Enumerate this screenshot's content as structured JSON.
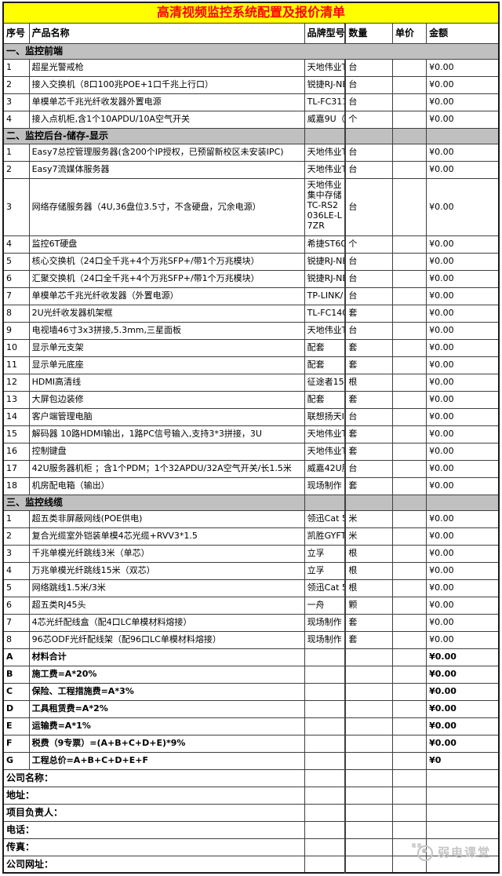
{
  "title": "高清视频监控系统配置及报价清单",
  "columns": [
    "序号",
    "产品名称",
    "品牌型号",
    "数量",
    "单价",
    "金额"
  ],
  "sections": [
    {
      "heading": "一、监控前端",
      "full_merge": true,
      "rows": [
        {
          "no": "1",
          "name": "超星光警戒枪",
          "brand": "天地伟业T",
          "qty": "台",
          "price": "",
          "amount": "¥0.00"
        },
        {
          "no": "2",
          "name": "接入交换机（8口100兆POE+1口千兆上行口）",
          "brand": "锐捷RJ-NE",
          "qty": "台",
          "price": "",
          "amount": "¥0.00"
        },
        {
          "no": "3",
          "name": "单模单芯千兆光纤收发器外置电源",
          "brand": "TL-FC3111",
          "qty": "台",
          "price": "",
          "amount": "¥0.00"
        },
        {
          "no": "4",
          "name": "接入点机柜,含1个10APDU/10A空气开关",
          "brand": "威嘉9U（5",
          "qty": "个",
          "price": "",
          "amount": "¥0.00"
        }
      ]
    },
    {
      "heading": "二、监控后台-储存-显示",
      "full_merge": false,
      "rows": [
        {
          "no": "1",
          "name": "Easy7总控管理服务器(含200个IP授权，已预留新校区未安装IPC)",
          "brand": "天地伟业T",
          "qty": "台",
          "price": "",
          "amount": "¥0.00"
        },
        {
          "no": "2",
          "name": "Easy7流媒体服务器",
          "brand": "天地伟业T",
          "qty": "台",
          "price": "",
          "amount": "¥0.00"
        },
        {
          "no": "3",
          "name": "网络存储服务器（4U,36盘位3.5寸，不含硬盘，冗余电源）",
          "brand": "天地伟业集中存储TC-RS2036LE-L7ZR",
          "qty": "台",
          "price": "",
          "amount": "¥0.00",
          "tall": true
        },
        {
          "no": "4",
          "name": "监控6T硬盘",
          "brand": "希捷ST600",
          "qty": "个",
          "price": "",
          "amount": "¥0.00"
        },
        {
          "no": "5",
          "name": "核心交换机（24口全千兆+4个万兆SFP+/带1个万兆模块）",
          "brand": "锐捷RJ-NE",
          "qty": "台",
          "price": "",
          "amount": "¥0.00"
        },
        {
          "no": "6",
          "name": "汇聚交换机（24口全千兆+4个万兆SFP+/带1个万兆模块）",
          "brand": "锐捷RJ-NE",
          "qty": "台",
          "price": "",
          "amount": "¥0.00"
        },
        {
          "no": "7",
          "name": "单模单芯千兆光纤收发器（外置电源）",
          "brand": "TP-LINK/",
          "qty": "台",
          "price": "",
          "amount": "¥0.00"
        },
        {
          "no": "8",
          "name": "2U光纤收发器机架框",
          "brand": "TL-FC140",
          "qty": "套",
          "price": "",
          "amount": "¥0.00"
        },
        {
          "no": "9",
          "name": "电视墙46寸3x3拼接,5.3mm,三星面板",
          "brand": "天地伟业T",
          "qty": "台",
          "price": "",
          "amount": "¥0.00"
        },
        {
          "no": "10",
          "name": "显示单元支架",
          "brand": "配套",
          "qty": "套",
          "price": "",
          "amount": "¥0.00"
        },
        {
          "no": "11",
          "name": "显示单元底座",
          "brand": "配套",
          "qty": "套",
          "price": "",
          "amount": "¥0.00"
        },
        {
          "no": "12",
          "name": "HDMI高清线",
          "brand": "征途者15米",
          "qty": "根",
          "price": "",
          "amount": "¥0.00"
        },
        {
          "no": "13",
          "name": "大屏包边装修",
          "brand": "配套",
          "qty": "套",
          "price": "",
          "amount": "¥0.00"
        },
        {
          "no": "14",
          "name": "客户端管理电脑",
          "brand": "联想扬天I",
          "qty": "台",
          "price": "",
          "amount": "¥0.00"
        },
        {
          "no": "15",
          "name": "解码器 10路HDMI输出，1路PC信号输入,支持3*3拼接，3U",
          "brand": "天地伟业T",
          "qty": "套",
          "price": "",
          "amount": "¥0.00"
        },
        {
          "no": "16",
          "name": "控制键盘",
          "brand": "天地伟业T",
          "qty": "套",
          "price": "",
          "amount": "¥0.00"
        },
        {
          "no": "17",
          "name": "42U服务器机柜 ；含1个PDM；1个32APDU/32A空气开关/长1.5米",
          "brand": "威嘉42U服",
          "qty": "台",
          "price": "",
          "amount": "¥0.00"
        },
        {
          "no": "18",
          "name": "机房配电箱（输出）",
          "brand": "现场制作",
          "qty": "套",
          "price": "",
          "amount": "¥0.00"
        }
      ]
    },
    {
      "heading": "三、监控线缆",
      "full_merge": false,
      "rows": [
        {
          "no": "1",
          "name": "超五类非屏蔽网线(POE供电)",
          "brand": "领迅Cat 5",
          "qty": "米",
          "price": "",
          "amount": "¥0.00"
        },
        {
          "no": "2",
          "name": "复合光缆室外铠装单模4芯光缆+RVV3*1.5",
          "brand": "凯胜GYFTA",
          "qty": "米",
          "price": "",
          "amount": "¥0.00"
        },
        {
          "no": "3",
          "name": "千兆单模光纤跳线3米（单芯）",
          "brand": "立孚",
          "qty": "根",
          "price": "",
          "amount": "¥0.00"
        },
        {
          "no": "4",
          "name": "万兆单模光纤跳线15米（双芯）",
          "brand": "立孚",
          "qty": "根",
          "price": "",
          "amount": "¥0.00"
        },
        {
          "no": "5",
          "name": "网络跳线1.5米/3米",
          "brand": "领迅Cat 5",
          "qty": "根",
          "price": "",
          "amount": "¥0.00"
        },
        {
          "no": "6",
          "name": "超五类RJ45头",
          "brand": "一舟",
          "qty": "颗",
          "price": "",
          "amount": "¥0.00"
        },
        {
          "no": "7",
          "name": "4芯光纤配线盒（配4口LC单模材料熔接）",
          "brand": "现场制作",
          "qty": "套",
          "price": "",
          "amount": "¥0.00"
        },
        {
          "no": "8",
          "name": "96芯ODF光纤配线架（配96口LC单模材料熔接）",
          "brand": "现场制作",
          "qty": "套",
          "price": "",
          "amount": "¥0.00"
        }
      ]
    }
  ],
  "summary": [
    {
      "code": "A",
      "label": "材料合计",
      "amount": "¥0.00"
    },
    {
      "code": "B",
      "label": "施工费=A*20%",
      "amount": "¥0.00"
    },
    {
      "code": "C",
      "label": "保险、工程措施费=A*3%",
      "amount": "¥0.00"
    },
    {
      "code": "D",
      "label": "工具租赁费=A*2%",
      "amount": "¥0.00"
    },
    {
      "code": "E",
      "label": "运输费=A*1%",
      "amount": "¥0.00"
    },
    {
      "code": "F",
      "label": "税费（9专票）=(A+B+C+D+E)*9%",
      "amount": "¥0.00"
    },
    {
      "code": "G",
      "label": "工程总价=A+B+C+D+E+F",
      "amount": "¥0"
    }
  ],
  "footer_labels": [
    "公司名称：",
    "地址：",
    "项目负责人：",
    "电话：",
    "传真：",
    "公司网址："
  ],
  "watermark": "弱电课堂",
  "colors": {
    "title_bg": "#FFFF00",
    "title_text": "#FF0000",
    "band_bg": "#C0C0C0",
    "border": "#3F3F3F"
  }
}
